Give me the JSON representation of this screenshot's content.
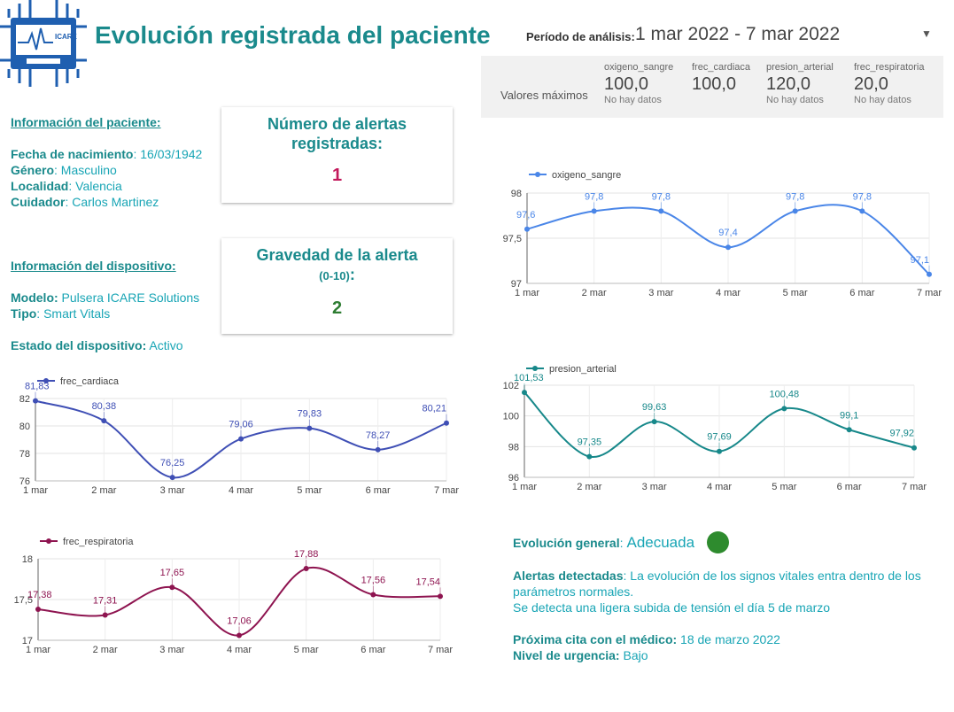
{
  "header": {
    "logo_text": "ICARE",
    "title": "Evolución registrada del paciente",
    "period_label": "Período de análisis:",
    "period_value": "1 mar 2022 - 7 mar 2022"
  },
  "max_values": {
    "label": "Valores máximos",
    "items": [
      {
        "name": "oxigeno_sangre",
        "value": "100,0",
        "sub": "No hay datos"
      },
      {
        "name": "frec_cardiaca",
        "value": "100,0",
        "sub": ""
      },
      {
        "name": "presion_arterial",
        "value": "120,0",
        "sub": "No hay datos"
      },
      {
        "name": "frec_respiratoria",
        "value": "20,0",
        "sub": "No hay datos"
      }
    ]
  },
  "patient": {
    "heading": "Información del paciente:",
    "birth_label": "Fecha de nacimiento",
    "birth": ": 16/03/1942",
    "gender_label": "Género",
    "gender": ": Masculino",
    "city_label": "Localidad",
    "city": ": Valencia",
    "carer_label": "Cuidador",
    "carer": ": Carlos Martinez"
  },
  "device": {
    "heading": "Información del dispositivo:",
    "model_label": "Modelo:",
    "model": " Pulsera ICARE Solutions",
    "type_label": "Tipo",
    "type": ": Smart Vitals",
    "status_label": "Estado del dispositivo:",
    "status": " Activo"
  },
  "alerts_card": {
    "title_line1": "Número de alertas",
    "title_line2": "registradas:",
    "value": "1"
  },
  "severity_card": {
    "title_line1": "Gravedad de la alerta",
    "title_sub": "(0-10)",
    "title_colon": ":",
    "value": "2"
  },
  "summary": {
    "evolution_label": "Evolución general",
    "evolution_colon": ": ",
    "evolution_value": "Adecuada",
    "status_color": "#2e8b2e",
    "alerts_label": "Alertas detectadas",
    "alerts_text_1": ": La evolución de los signos vitales entra dentro de los",
    "alerts_text_2": "parámetros normales.",
    "alerts_text_3": "Se detecta una ligera subida de tensión el día 5 de marzo",
    "next_label": "Próxima cita con el médico:",
    "next_value": " 18 de marzo 2022",
    "urgency_label": "Nivel de urgencia:",
    "urgency_value": " Bajo"
  },
  "chart_data": [
    {
      "id": "oxigeno",
      "type": "line",
      "title": "",
      "series": [
        {
          "name": "oxigeno_sangre",
          "values": [
            97.6,
            97.8,
            97.8,
            97.4,
            97.8,
            97.8,
            97.1
          ],
          "labels": [
            "97,6",
            "97,8",
            "97,8",
            "97,4",
            "97,8",
            "97,8",
            "97,1"
          ]
        }
      ],
      "categories": [
        "1 mar",
        "2 mar",
        "3 mar",
        "4 mar",
        "5 mar",
        "6 mar",
        "7 mar"
      ],
      "yticks": [
        "97",
        "97,5",
        "98"
      ],
      "ylim": [
        97,
        98
      ],
      "color": "#4a86e8",
      "legend": "top-left",
      "grid": true
    },
    {
      "id": "presion",
      "type": "line",
      "title": "",
      "series": [
        {
          "name": "presion_arterial",
          "values": [
            101.53,
            97.35,
            99.63,
            97.69,
            100.48,
            99.1,
            97.92
          ],
          "labels": [
            "101,53",
            "97,35",
            "99,63",
            "97,69",
            "100,48",
            "99,1",
            "97,92"
          ]
        }
      ],
      "categories": [
        "1 mar",
        "2 mar",
        "3 mar",
        "4 mar",
        "5 mar",
        "6 mar",
        "7 mar"
      ],
      "yticks": [
        "96",
        "98",
        "100",
        "102"
      ],
      "ylim": [
        96,
        102
      ],
      "color": "#17888a",
      "legend": "top-left",
      "grid": true
    },
    {
      "id": "cardiaca",
      "type": "line",
      "title": "",
      "series": [
        {
          "name": "frec_cardiaca",
          "values": [
            81.83,
            80.38,
            76.25,
            79.06,
            79.83,
            78.27,
            80.21
          ],
          "labels": [
            "81,83",
            "80,38",
            "76,25",
            "79,06",
            "79,83",
            "78,27",
            "80,21"
          ]
        }
      ],
      "categories": [
        "1 mar",
        "2 mar",
        "3 mar",
        "4 mar",
        "5 mar",
        "6 mar",
        "7 mar"
      ],
      "yticks": [
        "76",
        "78",
        "80",
        "82"
      ],
      "ylim": [
        76,
        82
      ],
      "color": "#3f4fb5",
      "legend": "top-left",
      "grid": true
    },
    {
      "id": "respiratoria",
      "type": "line",
      "title": "",
      "series": [
        {
          "name": "frec_respiratoria",
          "values": [
            17.38,
            17.31,
            17.65,
            17.06,
            17.88,
            17.56,
            17.54
          ],
          "labels": [
            "17,38",
            "17,31",
            "17,65",
            "17,06",
            "17,88",
            "17,56",
            "17,54"
          ]
        }
      ],
      "categories": [
        "1 mar",
        "2 mar",
        "3 mar",
        "4 mar",
        "5 mar",
        "6 mar",
        "7 mar"
      ],
      "yticks": [
        "17",
        "17,5",
        "18"
      ],
      "ylim": [
        17,
        18
      ],
      "color": "#8e1450",
      "legend": "top-left",
      "grid": true
    }
  ]
}
